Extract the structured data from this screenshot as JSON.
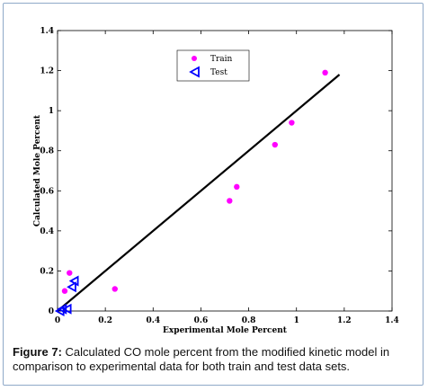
{
  "caption": {
    "label": "Figure 7:",
    "text": "Calculated CO mole percent from the modified kinetic model in comparison to experimental data for both train and test data sets."
  },
  "chart_data": {
    "type": "scatter",
    "title": "",
    "xlabel": "Experimental Mole Percent",
    "ylabel": "Calculated Mole Percent",
    "xlim": [
      0,
      1.4
    ],
    "ylim": [
      0,
      1.4
    ],
    "xticks": [
      "0",
      "0.2",
      "0.4",
      "0.6",
      "0.8",
      "1",
      "1.2",
      "1.4"
    ],
    "yticks": [
      "0",
      "0.2",
      "0.4",
      "0.6",
      "0.8",
      "1",
      "1.2",
      "1.4"
    ],
    "legend_position": "top-center",
    "series": [
      {
        "name": "Train",
        "marker": "circle",
        "color": "#ff00ff",
        "points": [
          {
            "x": 0.03,
            "y": 0.1
          },
          {
            "x": 0.05,
            "y": 0.19
          },
          {
            "x": 0.24,
            "y": 0.11
          },
          {
            "x": 0.72,
            "y": 0.55
          },
          {
            "x": 0.75,
            "y": 0.62
          },
          {
            "x": 0.91,
            "y": 0.83
          },
          {
            "x": 0.98,
            "y": 0.94
          },
          {
            "x": 1.12,
            "y": 1.19
          }
        ]
      },
      {
        "name": "Test",
        "marker": "triangle-left",
        "color": "#0000ff",
        "points": [
          {
            "x": 0.01,
            "y": 0.0
          },
          {
            "x": 0.02,
            "y": 0.01
          },
          {
            "x": 0.04,
            "y": 0.01
          },
          {
            "x": 0.06,
            "y": 0.12
          },
          {
            "x": 0.07,
            "y": 0.15
          }
        ]
      }
    ],
    "fit_line": {
      "color": "#000000",
      "x": [
        0.0,
        1.18
      ],
      "y": [
        0.0,
        1.18
      ]
    }
  }
}
